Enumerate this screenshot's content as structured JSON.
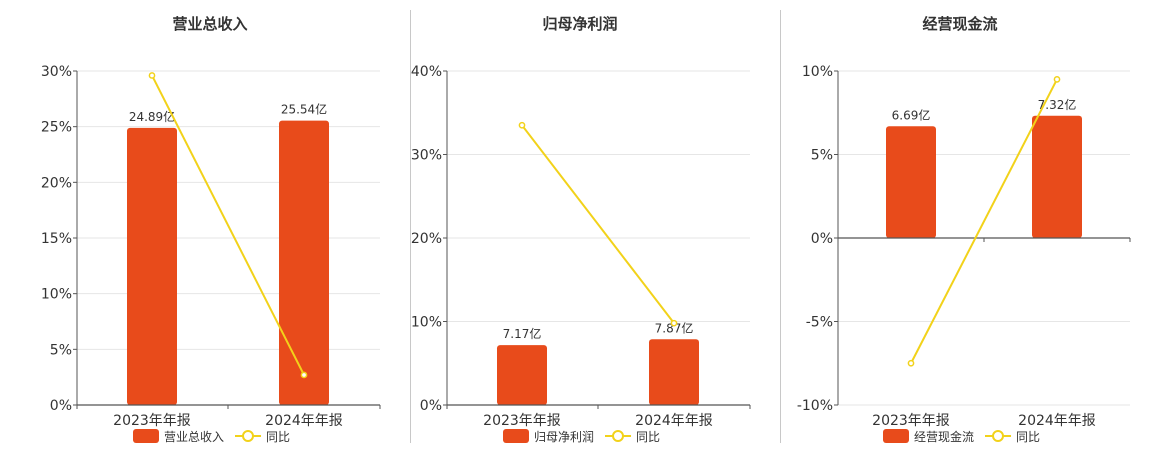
{
  "colors": {
    "bar": "#E84B1B",
    "line": "#F2D21A",
    "axis": "#555555",
    "grid": "#e6e6e6",
    "text": "#333333"
  },
  "chart_data": [
    {
      "type": "bar",
      "title": "营业总收入",
      "categories": [
        "2023年年报",
        "2024年年报"
      ],
      "series": [
        {
          "name": "营业总收入",
          "type": "bar",
          "values": [
            24.89,
            25.54
          ],
          "labels": [
            "24.89亿",
            "25.54亿"
          ]
        },
        {
          "name": "同比",
          "type": "line",
          "values": [
            29.6,
            2.7
          ]
        }
      ],
      "ylim": [
        0,
        30
      ],
      "yticks": [
        0,
        5,
        10,
        15,
        20,
        25,
        30
      ],
      "ytick_labels": [
        "0%",
        "5%",
        "10%",
        "15%",
        "20%",
        "25%",
        "30%"
      ],
      "grid": true,
      "legend": "bottom"
    },
    {
      "type": "bar",
      "title": "归母净利润",
      "categories": [
        "2023年年报",
        "2024年年报"
      ],
      "series": [
        {
          "name": "归母净利润",
          "type": "bar",
          "values": [
            7.17,
            7.87
          ],
          "labels": [
            "7.17亿",
            "7.87亿"
          ]
        },
        {
          "name": "同比",
          "type": "line",
          "values": [
            33.5,
            9.8
          ]
        }
      ],
      "ylim": [
        0,
        40
      ],
      "yticks": [
        0,
        10,
        20,
        30,
        40
      ],
      "ytick_labels": [
        "0%",
        "10%",
        "20%",
        "30%",
        "40%"
      ],
      "grid": true,
      "legend": "bottom"
    },
    {
      "type": "bar",
      "title": "经营现金流",
      "categories": [
        "2023年年报",
        "2024年年报"
      ],
      "series": [
        {
          "name": "经营现金流",
          "type": "bar",
          "values": [
            6.69,
            7.32
          ],
          "labels": [
            "6.69亿",
            "7.32亿"
          ]
        },
        {
          "name": "同比",
          "type": "line",
          "values": [
            -7.5,
            9.5
          ]
        }
      ],
      "ylim": [
        -10,
        10
      ],
      "yticks": [
        -10,
        -5,
        0,
        5,
        10
      ],
      "ytick_labels": [
        "-10%",
        "-5%",
        "0%",
        "5%",
        "10%"
      ],
      "grid": true,
      "legend": "bottom"
    }
  ]
}
